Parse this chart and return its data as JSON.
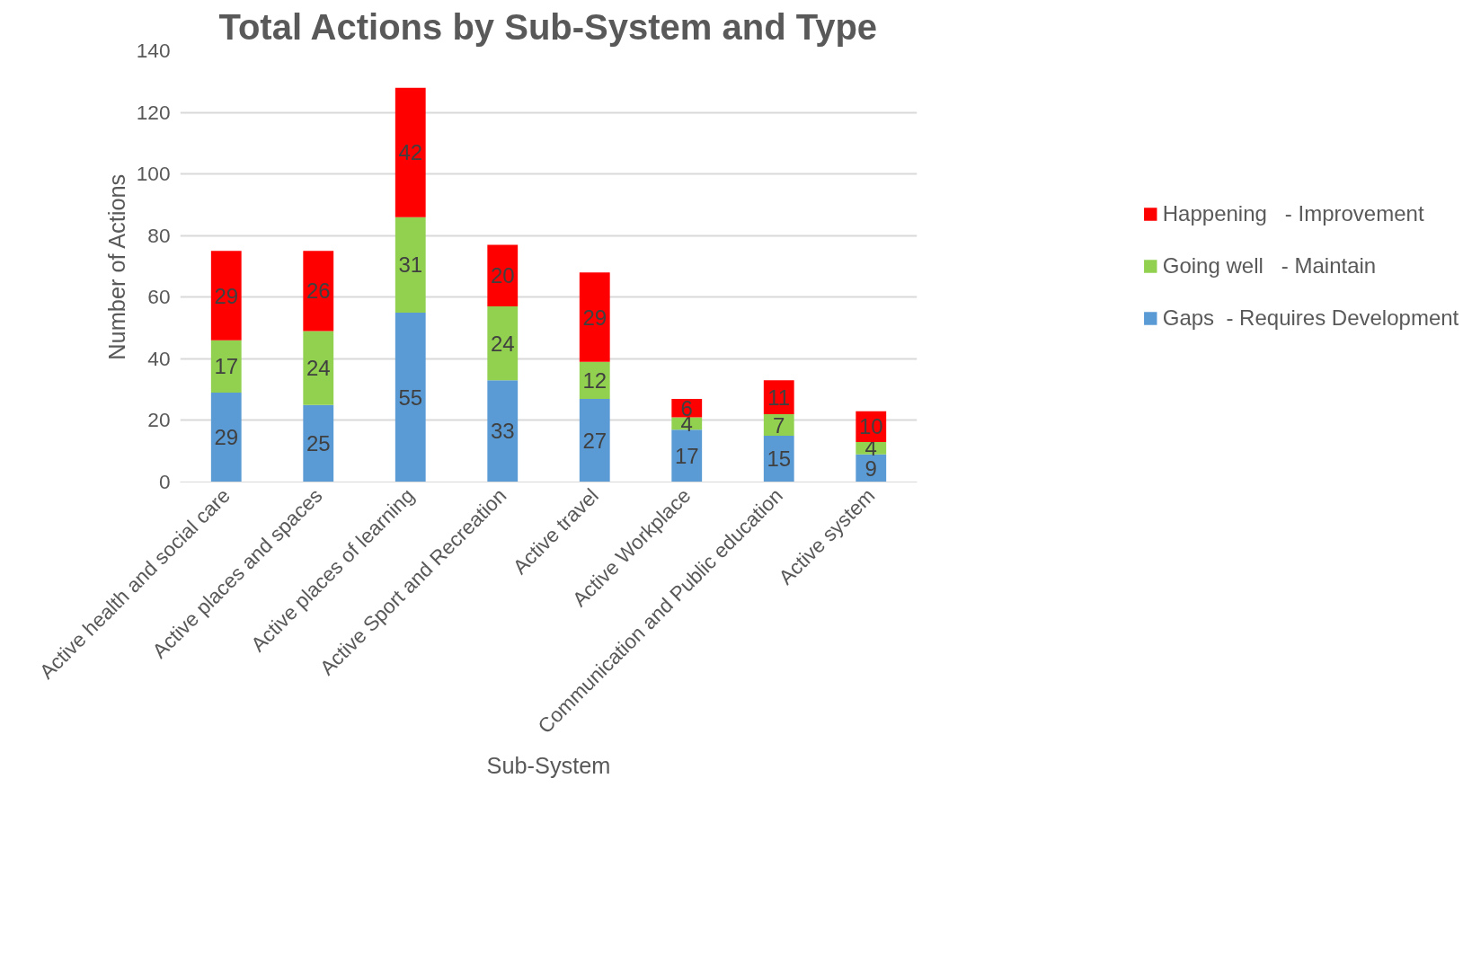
{
  "chart_data": {
    "type": "bar",
    "title": "Total Actions by Sub-System and Type",
    "xlabel": "Sub-System",
    "ylabel": "Number of Actions",
    "categories": [
      "Active health and social care",
      "Active places and spaces",
      "Active places of learning",
      "Active Sport and Recreation",
      "Active travel",
      "Active Workplace",
      "Communication and Public education",
      "Active system"
    ],
    "series": [
      {
        "name": "Gaps  - Requires Development",
        "color": "#5b9bd5",
        "values": [
          29,
          25,
          55,
          33,
          27,
          17,
          15,
          9
        ]
      },
      {
        "name": "Going well   - Maintain",
        "color": "#92d050",
        "values": [
          17,
          24,
          31,
          24,
          12,
          4,
          7,
          4
        ]
      },
      {
        "name": "Happening   - Improvement",
        "color": "#ff0000",
        "values": [
          29,
          26,
          42,
          20,
          29,
          6,
          11,
          10
        ]
      }
    ],
    "stacked": true,
    "data_labels": true,
    "ylim": [
      0,
      140
    ],
    "yticks": [
      0,
      20,
      40,
      60,
      80,
      100,
      120,
      140
    ],
    "grid": "y",
    "legend": "right"
  }
}
